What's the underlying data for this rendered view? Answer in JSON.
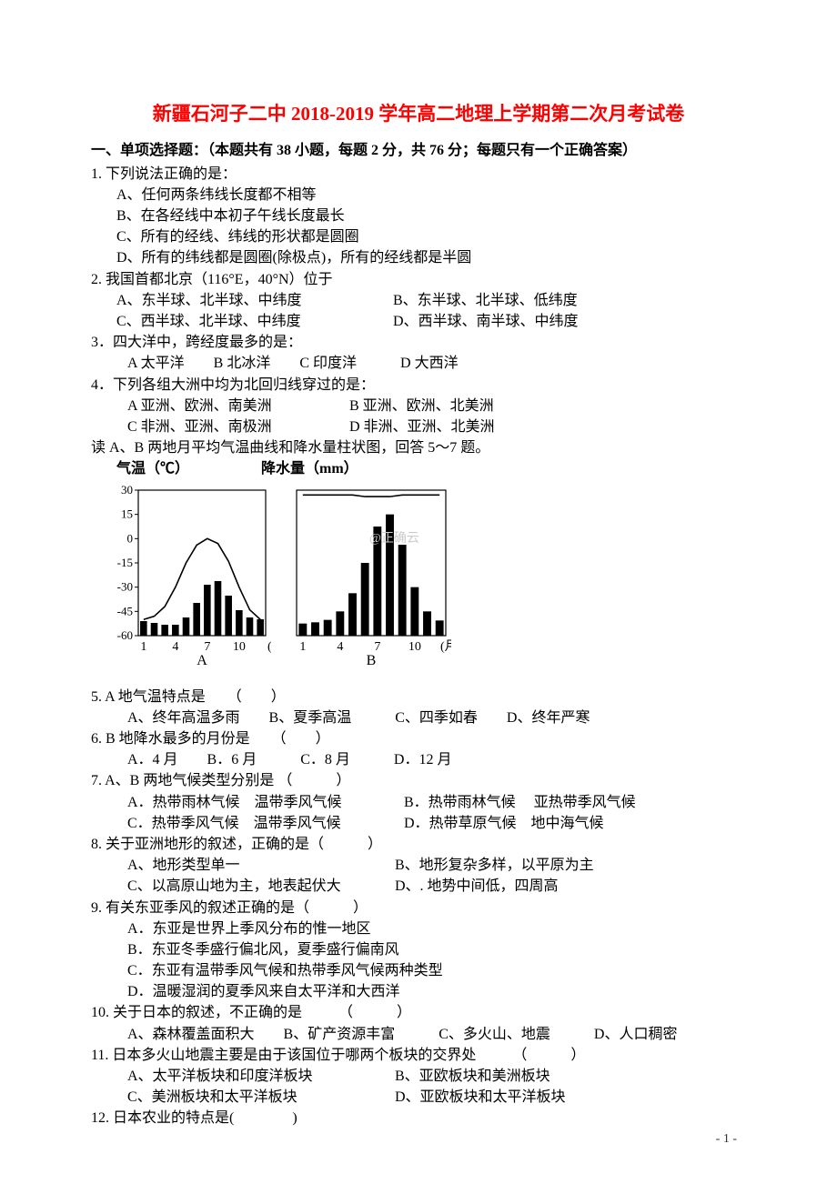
{
  "title": "新疆石河子二中 2018-2019 学年高二地理上学期第二次月考试卷",
  "section_head": "一、单项选择题：（本题共有 38 小题，每题 2 分，共 76 分；每题只有一个正确答案）",
  "q1": {
    "stem": "1. 下列说法正确的是：",
    "A": "A、任何两条纬线长度都不相等",
    "B": "B、在各经线中本初子午线长度最长",
    "C": "C、所有的经线、纬线的形状都是圆圈",
    "D": "D、所有的纬线都是圆圈(除极点)，所有的经线都是半圆"
  },
  "q2": {
    "stem": "2. 我国首都北京（116°E，40°N）位于",
    "A": "A、东半球、北半球、中纬度",
    "B": "B、东半球、北半球、低纬度",
    "C": "C、西半球、北半球、中纬度",
    "D": "D、西半球、南半球、中纬度"
  },
  "q3": {
    "stem": "3．四大洋中，跨经度最多的是：",
    "opts": "A 太平洋　　B 北冰洋　　C 印度洋　　　D 大西洋"
  },
  "q4": {
    "stem": "4．下列各组大洲中均为北回归线穿过的是：",
    "row1a": "A 亚洲、欧洲、南美洲",
    "row1b": "B 亚洲、欧洲、北美洲",
    "row2a": "C 非洲、亚洲、南极洲",
    "row2b": "D 非洲、亚洲、北美洲"
  },
  "read57": "读 A、B 两地月平均气温曲线和降水量柱状图，回答 5～7 题。",
  "chartA": {
    "title_left": "气温（℃）",
    "title_right": "降水量（mm）",
    "y_ticks": [
      "30",
      "15",
      "0",
      "-15",
      "-30",
      "-45",
      "-60"
    ],
    "y_values": [
      30,
      15,
      0,
      -15,
      -30,
      -45,
      -60
    ],
    "x_ticks": [
      "1",
      "4",
      "7",
      "10",
      "(月)"
    ],
    "label": "A",
    "temp": [
      -50,
      -48,
      -42,
      -30,
      -15,
      -4,
      0,
      -3,
      -14,
      -30,
      -44,
      -50
    ],
    "precip": [
      8,
      7,
      6,
      6,
      10,
      18,
      28,
      30,
      22,
      14,
      10,
      9
    ],
    "precip_max": 40,
    "line_color": "#000000",
    "bar_color": "#000000",
    "axis_color": "#000000",
    "bg": "#ffffff"
  },
  "chartB": {
    "x_ticks": [
      "1",
      "4",
      "7",
      "10",
      "(月)"
    ],
    "label": "B",
    "temp": [
      27,
      27,
      27,
      27,
      27,
      26,
      26,
      26,
      27,
      27,
      27,
      27
    ],
    "precip": [
      20,
      22,
      26,
      40,
      70,
      120,
      180,
      200,
      150,
      80,
      40,
      25
    ],
    "precip_max": 240,
    "line_color": "#000000",
    "bar_color": "#000000",
    "axis_color": "#000000",
    "bg": "#ffffff"
  },
  "watermark": "@正确云",
  "q5": {
    "stem": "5. A 地气温特点是　　（　　）",
    "opts": "A、终年高温多雨　　B、夏季高温　　　C、四季如春　　D、终年严寒"
  },
  "q6": {
    "stem": "6. B 地降水最多的月份是　　（　　）",
    "opts": "A．4 月　　B．6 月　　　C．8 月　　　D．12 月"
  },
  "q7": {
    "stem": "7. A、B 两地气候类型分别是 （　　　）",
    "A": "A．热带雨林气候　温带季风气候",
    "B": "B．热带雨林气候　 亚热带季风气候",
    "C": "C．热带季风气候　温带季风气候",
    "D": "D．热带草原气候　地中海气候"
  },
  "q8": {
    "stem": "8. 关于亚洲地形的叙述，正确的是（　　　）",
    "A": "A、地形类型单一",
    "B": "B、地形复杂多样，以平原为主",
    "C": "C、以高原山地为主，地表起伏大",
    "D": "D、. 地势中间低，四周高"
  },
  "q9": {
    "stem": "9. 有关东亚季风的叙述正确的是（　　　）",
    "A": "A．东亚是世界上季风分布的惟一地区",
    "B": "B．东亚冬季盛行偏北风，夏季盛行偏南风",
    "C": "C．东亚有温带季风气候和热带季风气候两种类型",
    "D": "D．温暖湿润的夏季风来自太平洋和大西洋"
  },
  "q10": {
    "stem": "10. 关于日本的叙述，不正确的是　　　（　　　）",
    "opts": "A、森林覆盖面积大　　B、矿产资源丰富　　　C、多火山、地震　　　D、人口稠密"
  },
  "q11": {
    "stem": "11. 日本多火山地震主要是由于该国位于哪两个板块的交界处　　　（　　　）",
    "A": "A、太平洋板块和印度洋板块",
    "B": "B、亚欧板块和美洲板块",
    "C": "C、美洲板块和太平洋板块",
    "D": "D、亚欧板块和太平洋板块"
  },
  "q12": {
    "stem": "12. 日本农业的特点是(　　　　)"
  },
  "page_num": "- 1 -"
}
